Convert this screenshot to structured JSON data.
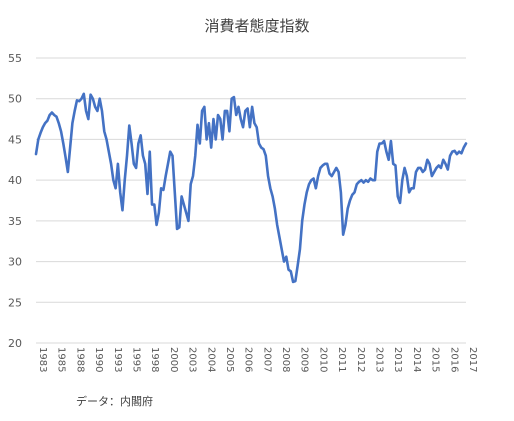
{
  "chart_data": {
    "type": "line",
    "title": "消費者態度指数",
    "source": "データ：内閣府",
    "xlabel": "",
    "ylabel": "",
    "ylim": [
      20,
      55
    ],
    "yticks": [
      20,
      25,
      30,
      35,
      40,
      45,
      50,
      55
    ],
    "grid": "horizontal",
    "legend": "none",
    "x_tick_labels": [
      "1983",
      "1985",
      "1988",
      "1990",
      "1993",
      "1995",
      "1998",
      "2000",
      "2003",
      "2004",
      "2005",
      "2006",
      "2007",
      "2008",
      "2009",
      "2010",
      "2011",
      "2012",
      "2013",
      "2013",
      "2014",
      "2015",
      "2016",
      "2017"
    ],
    "series": [
      {
        "color": "#4472C4",
        "points": [
          [
            0,
            43.2
          ],
          [
            0.25,
            45.0
          ],
          [
            0.5,
            45.8
          ],
          [
            0.75,
            46.5
          ],
          [
            1,
            47.0
          ],
          [
            1.25,
            47.3
          ],
          [
            1.5,
            48.0
          ],
          [
            1.75,
            48.3
          ],
          [
            2,
            48.0
          ],
          [
            2.25,
            47.8
          ],
          [
            2.5,
            47.0
          ],
          [
            2.75,
            46.0
          ],
          [
            3,
            44.5
          ],
          [
            3.25,
            42.8
          ],
          [
            3.5,
            41.0
          ],
          [
            3.75,
            44.0
          ],
          [
            4,
            47.0
          ],
          [
            4.25,
            48.5
          ],
          [
            4.5,
            49.8
          ],
          [
            4.75,
            49.7
          ],
          [
            5,
            50.0
          ],
          [
            5.25,
            50.6
          ],
          [
            5.5,
            48.5
          ],
          [
            5.75,
            47.5
          ],
          [
            6,
            50.5
          ],
          [
            6.25,
            50.0
          ],
          [
            6.5,
            49.0
          ],
          [
            6.75,
            48.5
          ],
          [
            7,
            50.0
          ],
          [
            7.25,
            48.5
          ],
          [
            7.5,
            46.0
          ],
          [
            7.75,
            45.0
          ],
          [
            8,
            43.5
          ],
          [
            8.25,
            42.0
          ],
          [
            8.5,
            40.0
          ],
          [
            8.75,
            39.0
          ],
          [
            9,
            42.0
          ],
          [
            9.25,
            38.5
          ],
          [
            9.5,
            36.3
          ],
          [
            9.75,
            40.0
          ],
          [
            10,
            43.0
          ],
          [
            10.25,
            46.7
          ],
          [
            10.5,
            44.5
          ],
          [
            10.75,
            42.0
          ],
          [
            11,
            41.5
          ],
          [
            11.25,
            44.5
          ],
          [
            11.5,
            45.5
          ],
          [
            11.75,
            43.0
          ],
          [
            12,
            42.0
          ],
          [
            12.25,
            38.3
          ],
          [
            12.5,
            43.5
          ],
          [
            12.75,
            37.0
          ],
          [
            13,
            37.0
          ],
          [
            13.25,
            34.5
          ],
          [
            13.5,
            36.0
          ],
          [
            13.75,
            39.0
          ],
          [
            14,
            38.8
          ],
          [
            14.25,
            40.5
          ],
          [
            14.5,
            42.0
          ],
          [
            14.75,
            43.5
          ],
          [
            15,
            43.0
          ],
          [
            15.25,
            38.5
          ],
          [
            15.5,
            34.0
          ],
          [
            15.75,
            34.2
          ],
          [
            16,
            38.0
          ],
          [
            16.25,
            37.0
          ],
          [
            16.5,
            36.0
          ],
          [
            16.75,
            35.0
          ],
          [
            17,
            39.5
          ],
          [
            17.25,
            40.5
          ],
          [
            17.5,
            43.0
          ],
          [
            17.75,
            46.8
          ],
          [
            18,
            44.5
          ],
          [
            18.25,
            48.5
          ],
          [
            18.5,
            49.0
          ],
          [
            18.75,
            45.0
          ],
          [
            19,
            47.0
          ],
          [
            19.25,
            44.0
          ],
          [
            19.5,
            47.5
          ],
          [
            19.75,
            45.0
          ],
          [
            20,
            48.0
          ],
          [
            20.25,
            47.5
          ],
          [
            20.5,
            45.0
          ],
          [
            20.75,
            48.5
          ],
          [
            21,
            48.5
          ],
          [
            21.25,
            46.0
          ],
          [
            21.5,
            50.0
          ],
          [
            21.75,
            50.2
          ],
          [
            22,
            48.0
          ],
          [
            22.25,
            49.0
          ],
          [
            22.5,
            47.5
          ],
          [
            22.75,
            46.5
          ],
          [
            23,
            48.5
          ],
          [
            23.25,
            48.8
          ],
          [
            23.5,
            46.5
          ],
          [
            23.75,
            49.0
          ],
          [
            24,
            47.0
          ],
          [
            24.25,
            46.5
          ],
          [
            24.5,
            44.5
          ],
          [
            24.75,
            44.0
          ],
          [
            25,
            43.8
          ],
          [
            25.25,
            43.0
          ],
          [
            25.5,
            40.5
          ],
          [
            25.75,
            39.0
          ],
          [
            26,
            38.0
          ],
          [
            26.25,
            36.5
          ],
          [
            26.5,
            34.5
          ],
          [
            26.75,
            33.0
          ],
          [
            27,
            31.5
          ],
          [
            27.25,
            30.0
          ],
          [
            27.5,
            30.6
          ],
          [
            27.75,
            29.0
          ],
          [
            28,
            28.8
          ],
          [
            28.25,
            27.5
          ],
          [
            28.5,
            27.6
          ],
          [
            28.75,
            29.5
          ],
          [
            29,
            31.5
          ],
          [
            29.25,
            35.0
          ],
          [
            29.5,
            37.0
          ],
          [
            29.75,
            38.5
          ],
          [
            30,
            39.5
          ],
          [
            30.25,
            40.0
          ],
          [
            30.5,
            40.2
          ],
          [
            30.75,
            39.0
          ],
          [
            31,
            40.5
          ],
          [
            31.25,
            41.5
          ],
          [
            31.5,
            41.8
          ],
          [
            31.75,
            42.0
          ],
          [
            32,
            42.0
          ],
          [
            32.25,
            40.8
          ],
          [
            32.5,
            40.5
          ],
          [
            32.75,
            41.0
          ],
          [
            33,
            41.5
          ],
          [
            33.25,
            41.0
          ],
          [
            33.5,
            38.5
          ],
          [
            33.75,
            33.3
          ],
          [
            34,
            34.5
          ],
          [
            34.25,
            36.5
          ],
          [
            34.5,
            37.5
          ],
          [
            34.75,
            38.2
          ],
          [
            35,
            38.5
          ],
          [
            35.25,
            39.5
          ],
          [
            35.5,
            39.8
          ],
          [
            35.75,
            40.0
          ],
          [
            36,
            39.7
          ],
          [
            36.25,
            40.0
          ],
          [
            36.5,
            39.8
          ],
          [
            36.75,
            40.2
          ],
          [
            37,
            40.0
          ],
          [
            37.25,
            40.0
          ],
          [
            37.5,
            43.5
          ],
          [
            37.75,
            44.5
          ],
          [
            38,
            44.5
          ],
          [
            38.25,
            44.8
          ],
          [
            38.5,
            43.5
          ],
          [
            38.75,
            42.5
          ],
          [
            39,
            44.8
          ],
          [
            39.25,
            42.0
          ],
          [
            39.5,
            41.8
          ],
          [
            39.75,
            38.0
          ],
          [
            40,
            37.2
          ],
          [
            40.25,
            40.0
          ],
          [
            40.5,
            41.5
          ],
          [
            40.75,
            40.5
          ],
          [
            41,
            38.5
          ],
          [
            41.25,
            39.0
          ],
          [
            41.5,
            39.0
          ],
          [
            41.75,
            41.0
          ],
          [
            42,
            41.5
          ],
          [
            42.25,
            41.5
          ],
          [
            42.5,
            41.0
          ],
          [
            42.75,
            41.3
          ],
          [
            43,
            42.5
          ],
          [
            43.25,
            42.0
          ],
          [
            43.5,
            40.5
          ],
          [
            43.75,
            41.0
          ],
          [
            44,
            41.5
          ],
          [
            44.25,
            41.8
          ],
          [
            44.5,
            41.5
          ],
          [
            44.75,
            42.5
          ],
          [
            45,
            42.0
          ],
          [
            45.25,
            41.3
          ],
          [
            45.5,
            43.0
          ],
          [
            45.75,
            43.5
          ],
          [
            46,
            43.6
          ],
          [
            46.25,
            43.2
          ],
          [
            46.5,
            43.5
          ],
          [
            46.75,
            43.3
          ],
          [
            47,
            44.0
          ],
          [
            47.25,
            44.5
          ]
        ]
      }
    ]
  }
}
